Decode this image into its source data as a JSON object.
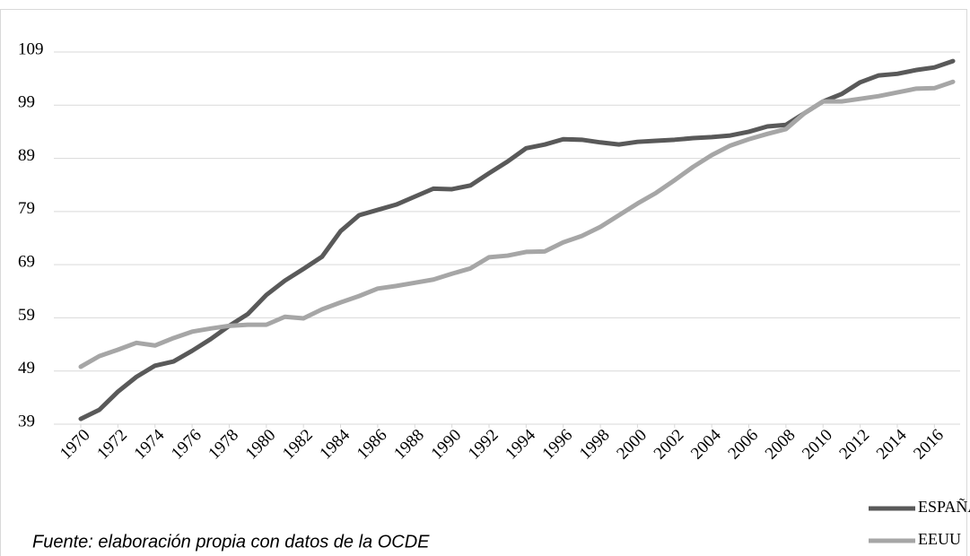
{
  "chart_data": {
    "type": "line",
    "note": "Fuente: elaboración propia con datos de la OCDE",
    "x": [
      1970,
      1971,
      1972,
      1973,
      1974,
      1975,
      1976,
      1977,
      1978,
      1979,
      1980,
      1981,
      1982,
      1983,
      1984,
      1985,
      1986,
      1987,
      1988,
      1989,
      1990,
      1991,
      1992,
      1993,
      1994,
      1995,
      1996,
      1997,
      1998,
      1999,
      2000,
      2001,
      2002,
      2003,
      2004,
      2005,
      2006,
      2007,
      2008,
      2009,
      2010,
      2011,
      2012,
      2013,
      2014,
      2015,
      2016,
      2017
    ],
    "xlim": [
      1970,
      2017
    ],
    "xticks": [
      1970,
      1972,
      1974,
      1976,
      1978,
      1980,
      1982,
      1984,
      1986,
      1988,
      1990,
      1992,
      1994,
      1996,
      1998,
      2000,
      2002,
      2004,
      2006,
      2008,
      2010,
      2012,
      2014,
      2016
    ],
    "ylim": [
      39,
      109
    ],
    "yticks": [
      39,
      49,
      59,
      69,
      79,
      89,
      99,
      109
    ],
    "grid": true,
    "legend": "bottom-right",
    "series": [
      {
        "name": "ESPAÑA",
        "color": "#595959",
        "values": [
          40.0,
          41.7,
          45.1,
          47.9,
          50.0,
          50.8,
          52.8,
          55.0,
          57.5,
          59.7,
          63.3,
          66.0,
          68.2,
          70.5,
          75.3,
          78.3,
          79.3,
          80.3,
          81.8,
          83.3,
          83.2,
          83.9,
          86.2,
          88.4,
          90.9,
          91.6,
          92.6,
          92.5,
          92.0,
          91.6,
          92.1,
          92.3,
          92.5,
          92.8,
          93.0,
          93.3,
          94.0,
          95.0,
          95.3,
          97.5,
          99.7,
          101.1,
          103.3,
          104.6,
          104.9,
          105.6,
          106.1,
          107.3
        ]
      },
      {
        "name": "EEUU",
        "color": "#a6a6a6",
        "values": [
          49.8,
          51.8,
          53.0,
          54.3,
          53.8,
          55.2,
          56.4,
          57.0,
          57.5,
          57.7,
          57.7,
          59.2,
          58.9,
          60.6,
          61.9,
          63.1,
          64.5,
          65.0,
          65.6,
          66.2,
          67.3,
          68.3,
          70.4,
          70.7,
          71.4,
          71.5,
          73.2,
          74.4,
          76.1,
          78.3,
          80.5,
          82.5,
          84.9,
          87.4,
          89.6,
          91.4,
          92.6,
          93.6,
          94.5,
          97.5,
          99.7,
          99.7,
          100.2,
          100.7,
          101.4,
          102.1,
          102.2,
          103.4
        ]
      }
    ]
  }
}
